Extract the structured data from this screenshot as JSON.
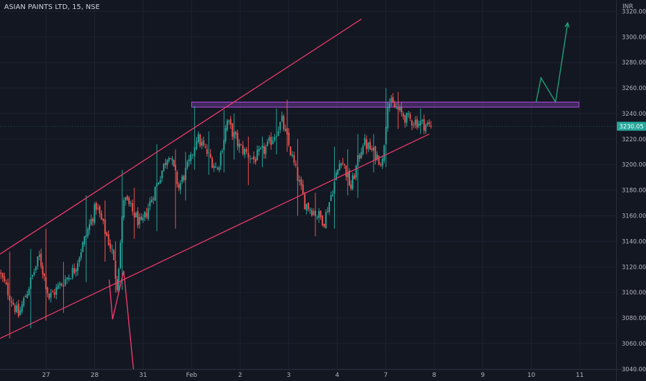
{
  "header": {
    "symbol_title": "ASIAN PAINTS LTD, 15, NSE",
    "currency": "INR"
  },
  "colors": {
    "background": "#131722",
    "up": "#26a69a",
    "down": "#ef5350",
    "channel": "#f23b6a",
    "resistance_fill": "#7b3fa6",
    "resistance_border": "#b04fe0",
    "projection_up": "#1fa37a",
    "projection_down": "#f23b6a",
    "axis_text": "#b2b5be",
    "price_label_bg": "#26a69a"
  },
  "chart_data": {
    "type": "candlestick",
    "title": "",
    "xlabel": "",
    "ylabel": "",
    "ylim": [
      3040,
      3330
    ],
    "y_ticks": [
      3040,
      3060,
      3080,
      3100,
      3120,
      3140,
      3160,
      3180,
      3200,
      3220,
      3240,
      3260,
      3280,
      3300,
      3320
    ],
    "y_tick_labels": [
      "3040.00",
      "3060.00",
      "3080.00",
      "3100.00",
      "3120.00",
      "3140.00",
      "3160.00",
      "3180.00",
      "3200.00",
      "3220.00",
      "3240.00",
      "3260.00",
      "3280.00",
      "3300.00",
      "3320.00"
    ],
    "x_ticks": [
      0,
      1,
      2,
      3,
      4,
      5,
      6,
      7,
      8,
      9,
      10,
      11
    ],
    "x_tick_labels": [
      "27",
      "28",
      "31",
      "Feb",
      "2",
      "3",
      "4",
      "7",
      "8",
      "9",
      "10",
      "11"
    ],
    "xlim": [
      -0.95,
      11.6
    ],
    "last_price": 3230.05,
    "last_price_label": "3230.05",
    "resistance_zone": {
      "x_start": 3.0,
      "x_end": 10.98,
      "y_low": 3245,
      "y_high": 3249
    },
    "upper_channel_line": [
      [
        -0.95,
        3130
      ],
      [
        6.5,
        3314
      ]
    ],
    "lower_channel_line": [
      [
        -0.95,
        3064
      ],
      [
        7.9,
        3224
      ]
    ],
    "bearish_projection": [
      [
        1.3,
        3110
      ],
      [
        1.37,
        3079
      ],
      [
        1.6,
        3117
      ],
      [
        1.8,
        3040
      ]
    ],
    "bullish_projection": [
      [
        10.1,
        3249
      ],
      [
        10.2,
        3268
      ],
      [
        10.5,
        3249
      ],
      [
        10.75,
        3311
      ]
    ],
    "segments": [
      {
        "x0": -0.95,
        "x1": -0.55,
        "start": 3116,
        "end": 3082,
        "min": 3064,
        "max": 3132
      },
      {
        "x0": -0.55,
        "x1": -0.12,
        "start": 3082,
        "end": 3128,
        "min": 3072,
        "max": 3134
      },
      {
        "x0": -0.12,
        "x1": 0.08,
        "start": 3128,
        "end": 3096,
        "min": 3078,
        "max": 3150
      },
      {
        "x0": 0.08,
        "x1": 0.6,
        "start": 3096,
        "end": 3118,
        "min": 3084,
        "max": 3124
      },
      {
        "x0": 0.6,
        "x1": 1.05,
        "start": 3118,
        "end": 3168,
        "min": 3108,
        "max": 3176
      },
      {
        "x0": 1.05,
        "x1": 1.38,
        "start": 3168,
        "end": 3132,
        "min": 3124,
        "max": 3172
      },
      {
        "x0": 1.38,
        "x1": 1.48,
        "start": 3132,
        "end": 3104,
        "min": 3100,
        "max": 3140
      },
      {
        "x0": 1.48,
        "x1": 1.62,
        "start": 3104,
        "end": 3174,
        "min": 3102,
        "max": 3196
      },
      {
        "x0": 1.62,
        "x1": 1.98,
        "start": 3174,
        "end": 3152,
        "min": 3142,
        "max": 3182
      },
      {
        "x0": 1.98,
        "x1": 2.55,
        "start": 3152,
        "end": 3210,
        "min": 3148,
        "max": 3216
      },
      {
        "x0": 2.55,
        "x1": 2.75,
        "start": 3210,
        "end": 3182,
        "min": 3150,
        "max": 3212
      },
      {
        "x0": 2.75,
        "x1": 3.0,
        "start": 3182,
        "end": 3204,
        "min": 3172,
        "max": 3210
      },
      {
        "x0": 3.0,
        "x1": 3.12,
        "start": 3204,
        "end": 3222,
        "min": 3196,
        "max": 3246
      },
      {
        "x0": 3.12,
        "x1": 3.55,
        "start": 3222,
        "end": 3196,
        "min": 3192,
        "max": 3226
      },
      {
        "x0": 3.55,
        "x1": 3.75,
        "start": 3196,
        "end": 3234,
        "min": 3194,
        "max": 3243
      },
      {
        "x0": 3.75,
        "x1": 4.0,
        "start": 3234,
        "end": 3214,
        "min": 3204,
        "max": 3240
      },
      {
        "x0": 4.0,
        "x1": 4.3,
        "start": 3214,
        "end": 3204,
        "min": 3184,
        "max": 3222
      },
      {
        "x0": 4.3,
        "x1": 4.58,
        "start": 3204,
        "end": 3214,
        "min": 3198,
        "max": 3222
      },
      {
        "x0": 4.58,
        "x1": 4.88,
        "start": 3214,
        "end": 3234,
        "min": 3208,
        "max": 3244
      },
      {
        "x0": 4.88,
        "x1": 5.02,
        "start": 3234,
        "end": 3215,
        "min": 3210,
        "max": 3251
      },
      {
        "x0": 5.02,
        "x1": 5.35,
        "start": 3215,
        "end": 3170,
        "min": 3160,
        "max": 3220
      },
      {
        "x0": 5.35,
        "x1": 5.75,
        "start": 3170,
        "end": 3156,
        "min": 3144,
        "max": 3178
      },
      {
        "x0": 5.75,
        "x1": 6.1,
        "start": 3156,
        "end": 3206,
        "min": 3150,
        "max": 3214
      },
      {
        "x0": 6.1,
        "x1": 6.3,
        "start": 3206,
        "end": 3182,
        "min": 3176,
        "max": 3212
      },
      {
        "x0": 6.3,
        "x1": 6.55,
        "start": 3182,
        "end": 3218,
        "min": 3174,
        "max": 3224
      },
      {
        "x0": 6.55,
        "x1": 6.95,
        "start": 3218,
        "end": 3202,
        "min": 3194,
        "max": 3224
      },
      {
        "x0": 6.95,
        "x1": 7.06,
        "start": 3202,
        "end": 3250,
        "min": 3198,
        "max": 3260
      },
      {
        "x0": 7.06,
        "x1": 7.45,
        "start": 3250,
        "end": 3236,
        "min": 3228,
        "max": 3257
      },
      {
        "x0": 7.45,
        "x1": 7.95,
        "start": 3236,
        "end": 3230,
        "min": 3224,
        "max": 3244
      }
    ]
  }
}
